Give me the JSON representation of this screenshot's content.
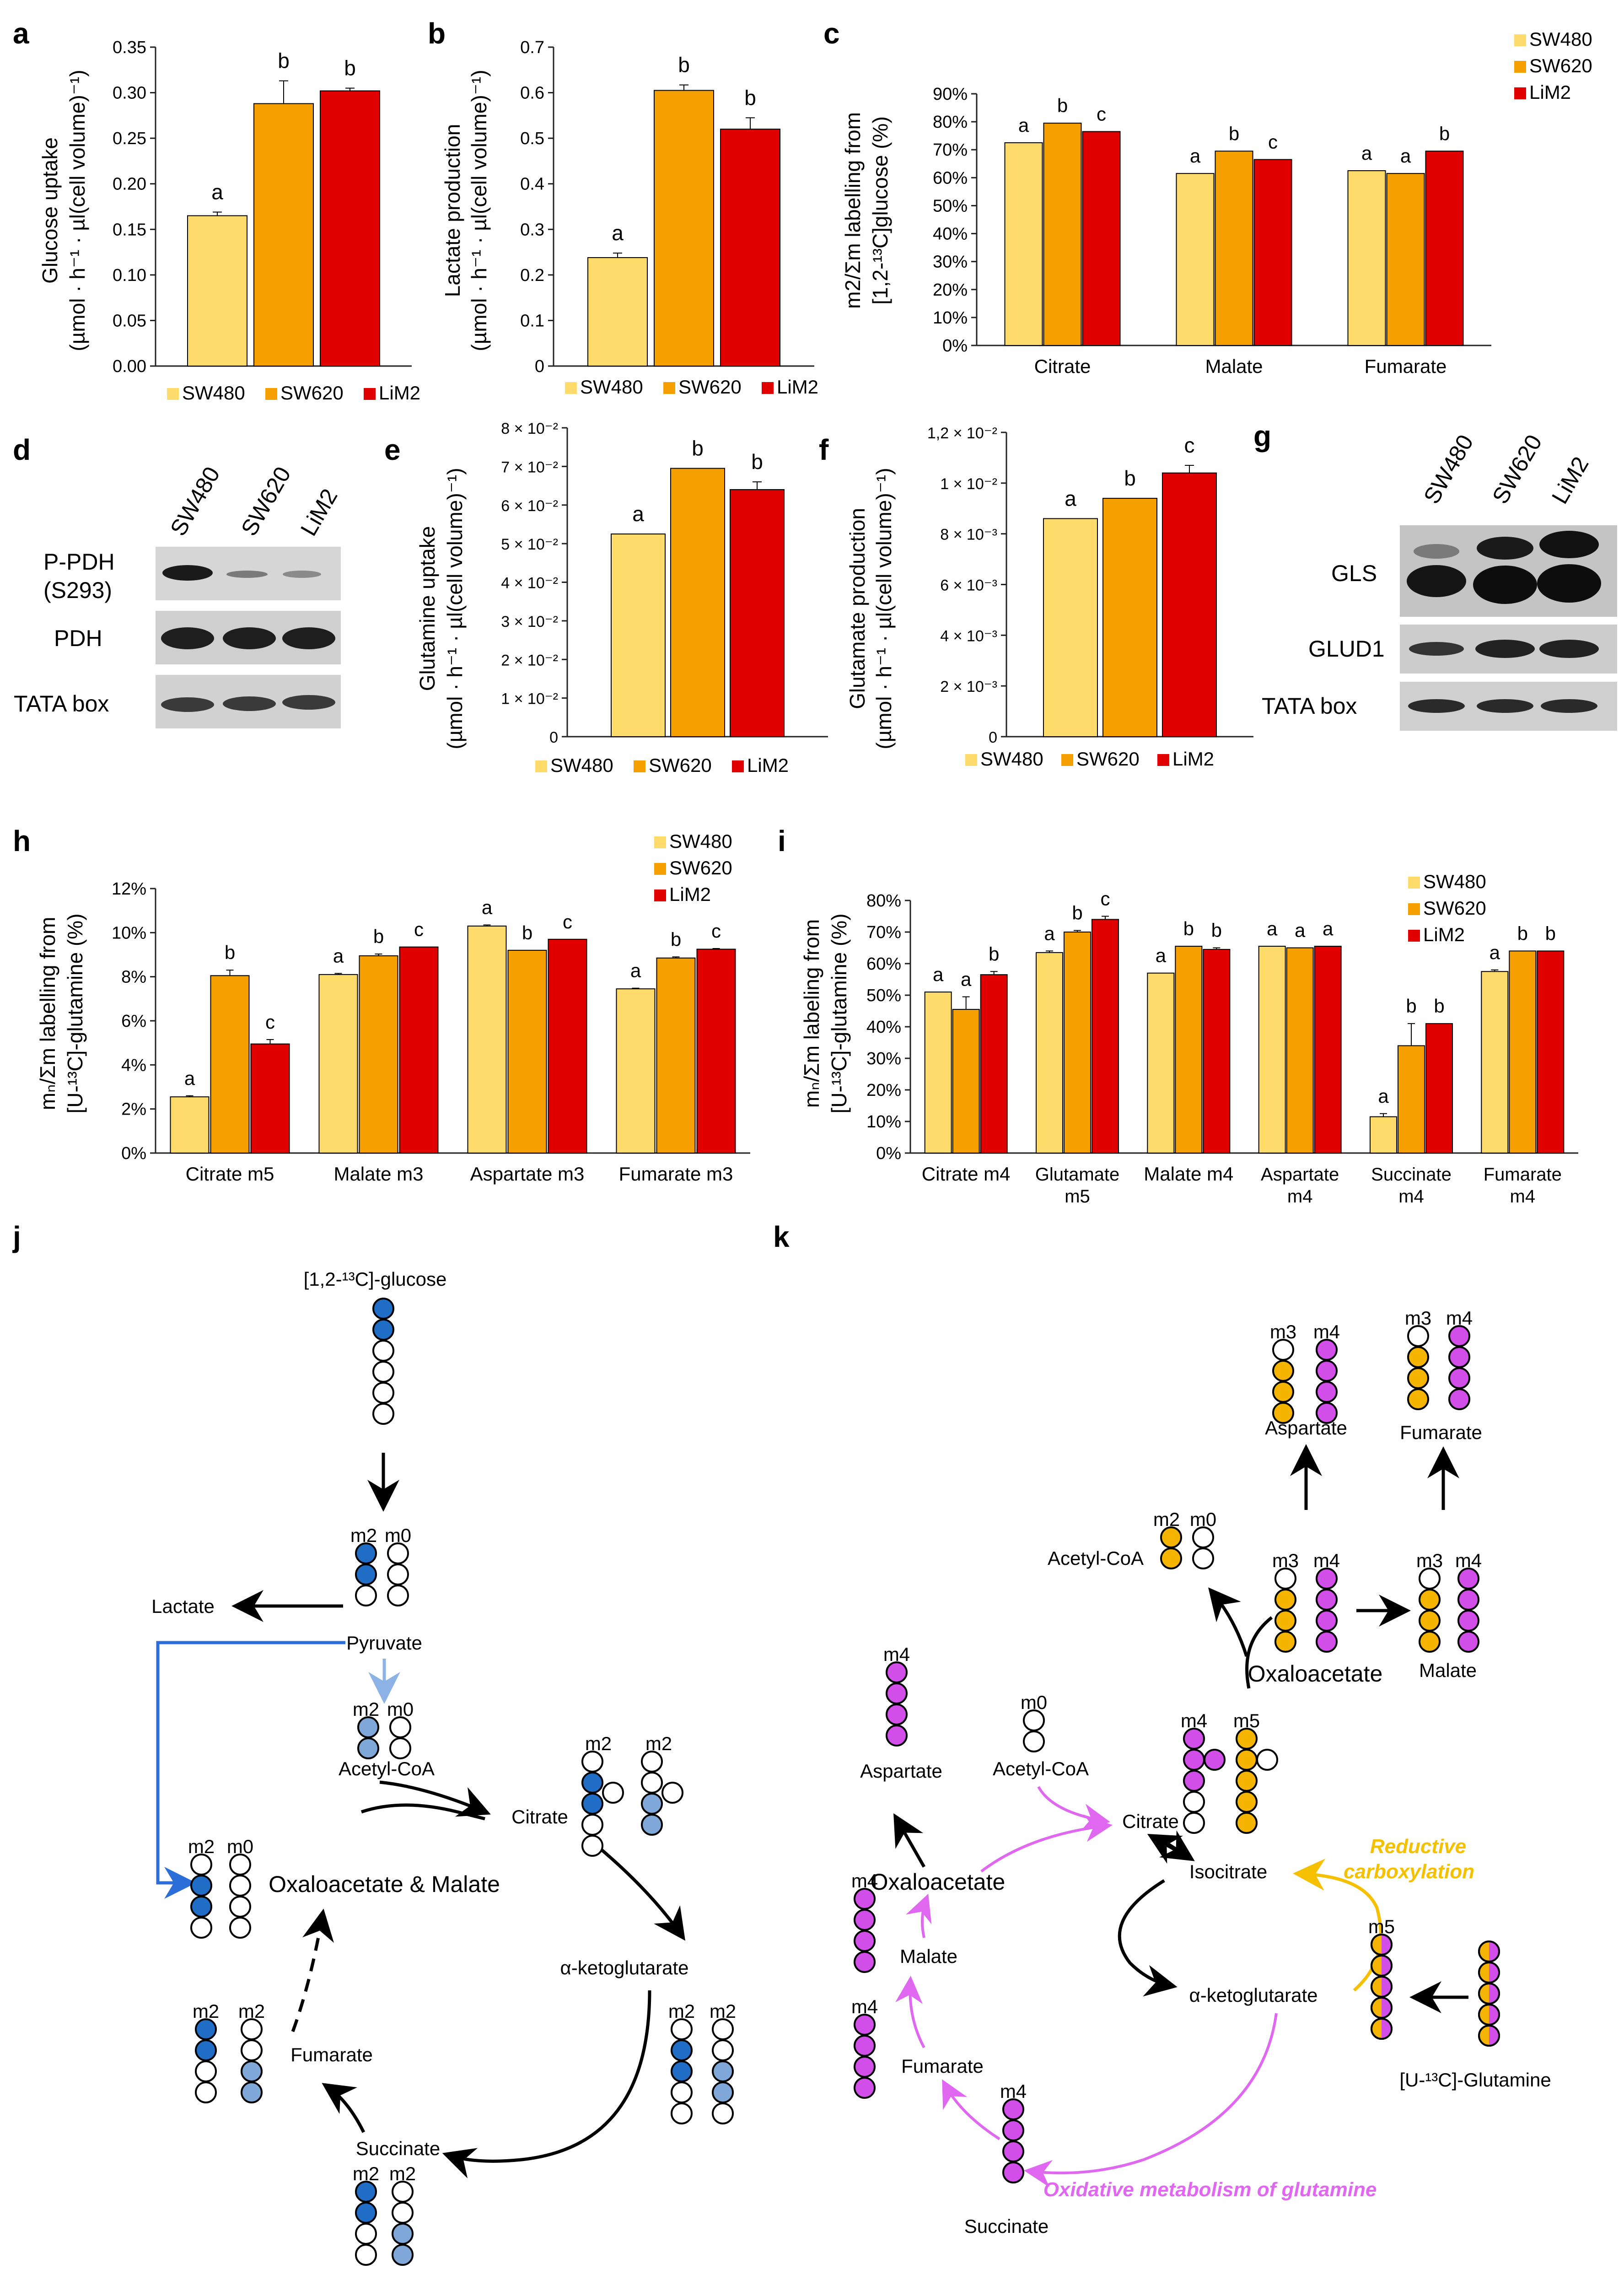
{
  "colors": {
    "SW480": "#FFDB6B",
    "SW620": "#F5A000",
    "LiM2": "#E00000",
    "blue_dark": "#1F6DC5",
    "blue_light": "#7FA8D8",
    "orange": "#F5B400",
    "magenta": "#D14FE8",
    "arrow_blue": "#2C6ED8",
    "arrow_lblue": "#8DB2E6",
    "pink_arrow": "#E068F0",
    "gold": "#F5C000"
  },
  "legend": [
    "SW480",
    "SW620",
    "LiM2"
  ],
  "panels": {
    "a": {
      "letter": "a",
      "ylabel1": "Glucose uptake",
      "ylabel2": "(µmol · h⁻¹ · µl(cell volume)⁻¹)",
      "yticks": [
        "0.00",
        "0.05",
        "0.10",
        "0.15",
        "0.20",
        "0.25",
        "0.30",
        "0.35"
      ]
    },
    "b": {
      "letter": "b",
      "ylabel1": "Lactate production",
      "ylabel2": "(µmol · h⁻¹ · µl(cell volume)⁻¹)",
      "yticks": [
        "0",
        "0.1",
        "0.2",
        "0.3",
        "0.4",
        "0.5",
        "0.6",
        "0.7"
      ]
    },
    "c": {
      "letter": "c",
      "ylabel1": "m2/Σm labelling from",
      "ylabel2": "[1,2-¹³C]glucose (%)",
      "yticks": [
        "0%",
        "10%",
        "20%",
        "30%",
        "40%",
        "50%",
        "60%",
        "70%",
        "80%",
        "90%"
      ]
    },
    "d": {
      "letter": "d",
      "lanes": [
        "SW480",
        "SW620",
        "LiM2"
      ],
      "rows": [
        "P-PDH",
        "(S293)",
        "PDH",
        "TATA box"
      ]
    },
    "e": {
      "letter": "e",
      "ylabel1": "Glutamine uptake",
      "ylabel2": "(µmol · h⁻¹ · µl(cell volume)⁻¹)",
      "yticks": [
        "0",
        "1 × 10⁻²",
        "2 × 10⁻²",
        "3 × 10⁻²",
        "4 × 10⁻²",
        "5 × 10⁻²",
        "6 × 10⁻²",
        "7 × 10⁻²",
        "8 × 10⁻²"
      ]
    },
    "f": {
      "letter": "f",
      "ylabel1": "Glutamate production",
      "ylabel2": "(µmol · h⁻¹ · µl(cell volume)⁻¹)",
      "yticks": [
        "0",
        "2 × 10⁻³",
        "4 × 10⁻³",
        "6 × 10⁻³",
        "8 × 10⁻³",
        "1 × 10⁻²",
        "1,2 × 10⁻²"
      ]
    },
    "g": {
      "letter": "g",
      "lanes": [
        "SW480",
        "SW620",
        "LiM2"
      ],
      "rows": [
        "GLS",
        "GLUD1",
        "TATA box"
      ]
    },
    "h": {
      "letter": "h",
      "ylabel1": "mₙ/Σm labelling from",
      "ylabel2": "[U-¹³C]-glutamine (%)",
      "yticks": [
        "0%",
        "2%",
        "4%",
        "6%",
        "8%",
        "10%",
        "12%"
      ]
    },
    "i": {
      "letter": "i",
      "ylabel1": "mₙ/Σm labeling from",
      "ylabel2": "[U-¹³C]-glutamine  (%)",
      "yticks": [
        "0%",
        "10%",
        "20%",
        "30%",
        "40%",
        "50%",
        "60%",
        "70%",
        "80%"
      ]
    }
  },
  "chart_data": [
    {
      "panel": "a",
      "type": "bar",
      "categories": [
        "SW480",
        "SW620",
        "LiM2"
      ],
      "values": [
        0.165,
        0.288,
        0.302
      ],
      "errors": [
        0.004,
        0.025,
        0.003
      ],
      "letters": [
        "a",
        "b",
        "b"
      ],
      "ylim": [
        0,
        0.35
      ],
      "ylabel": "Glucose uptake (µmol · h⁻¹ · µl(cell volume)⁻¹)"
    },
    {
      "panel": "b",
      "type": "bar",
      "categories": [
        "SW480",
        "SW620",
        "LiM2"
      ],
      "values": [
        0.238,
        0.605,
        0.52
      ],
      "errors": [
        0.01,
        0.012,
        0.025
      ],
      "letters": [
        "a",
        "b",
        "b"
      ],
      "ylim": [
        0,
        0.7
      ],
      "ylabel": "Lactate production (µmol · h⁻¹ · µl(cell volume)⁻¹)"
    },
    {
      "panel": "c",
      "type": "bar",
      "categories": [
        "Citrate",
        "Malate",
        "Fumarate"
      ],
      "series": [
        {
          "name": "SW480",
          "values": [
            72.5,
            61.5,
            62.5
          ]
        },
        {
          "name": "SW620",
          "values": [
            79.5,
            69.5,
            61.5
          ]
        },
        {
          "name": "LiM2",
          "values": [
            76.5,
            66.5,
            69.5
          ]
        }
      ],
      "letters": [
        [
          "a",
          "b",
          "c"
        ],
        [
          "a",
          "b",
          "c"
        ],
        [
          "a",
          "a",
          "b"
        ]
      ],
      "ylim": [
        0,
        90
      ],
      "ylabel": "m2/Σm labelling from [1,2-¹³C]glucose (%)"
    },
    {
      "panel": "e",
      "type": "bar",
      "categories": [
        "SW480",
        "SW620",
        "LiM2"
      ],
      "values": [
        0.0525,
        0.0695,
        0.064
      ],
      "errors": [
        0,
        0,
        0.002
      ],
      "letters": [
        "a",
        "b",
        "b"
      ],
      "ylim": [
        0,
        0.08
      ],
      "ylabel": "Glutamine uptake (µmol · h⁻¹ · µl(cell volume)⁻¹)"
    },
    {
      "panel": "f",
      "type": "bar",
      "categories": [
        "SW480",
        "SW620",
        "LiM2"
      ],
      "values": [
        0.0086,
        0.0094,
        0.0104
      ],
      "errors": [
        0,
        0,
        0.0003
      ],
      "letters": [
        "a",
        "b",
        "c"
      ],
      "ylim": [
        0,
        0.012
      ],
      "ylabel": "Glutamate production (µmol · h⁻¹ · µl(cell volume)⁻¹)"
    },
    {
      "panel": "h",
      "type": "bar",
      "categories": [
        "Citrate m5",
        "Malate m3",
        "Aspartate m3",
        "Fumarate m3"
      ],
      "series": [
        {
          "name": "SW480",
          "values": [
            2.55,
            8.1,
            10.3,
            7.45
          ]
        },
        {
          "name": "SW620",
          "values": [
            8.05,
            8.95,
            9.2,
            8.85
          ]
        },
        {
          "name": "LiM2",
          "values": [
            4.95,
            9.35,
            9.7,
            9.25
          ]
        }
      ],
      "errors": [
        [
          0.05,
          0.25,
          0.2
        ],
        [
          0.05,
          0.08,
          0
        ],
        [
          0.05,
          0,
          0
        ],
        [
          0.03,
          0.05,
          0.03
        ]
      ],
      "letters": [
        [
          "a",
          "b",
          "c"
        ],
        [
          "a",
          "b",
          "c"
        ],
        [
          "a",
          "b",
          "c"
        ],
        [
          "a",
          "b",
          "c"
        ]
      ],
      "ylim": [
        0,
        12
      ],
      "ylabel": "mₙ/Σm labelling from [U-¹³C]-glutamine (%)"
    },
    {
      "panel": "i",
      "type": "bar",
      "categories": [
        "Citrate  m4",
        "Glutamate m5",
        "Malate m4",
        "Aspartate m4",
        "Succinate m4",
        "Fumarate m4"
      ],
      "series": [
        {
          "name": "SW480",
          "values": [
            51,
            63.5,
            57,
            65.5,
            11.5,
            57.5
          ]
        },
        {
          "name": "SW620",
          "values": [
            45.5,
            70,
            65.5,
            65,
            34,
            64
          ]
        },
        {
          "name": "LiM2",
          "values": [
            56.5,
            74,
            64.5,
            65.5,
            41,
            64
          ]
        }
      ],
      "errors": [
        [
          0,
          4,
          1
        ],
        [
          0.5,
          0.5,
          1
        ],
        [
          0,
          0,
          0.5
        ],
        [
          0,
          0,
          0
        ],
        [
          1,
          7,
          0
        ],
        [
          0.5,
          0,
          0
        ]
      ],
      "letters": [
        [
          "a",
          "a",
          "b"
        ],
        [
          "a",
          "b",
          "c"
        ],
        [
          "a",
          "b",
          "b"
        ],
        [
          "a",
          "a",
          "a"
        ],
        [
          "a",
          "b",
          "b"
        ],
        [
          "a",
          "b",
          "b"
        ]
      ],
      "ylim": [
        0,
        80
      ],
      "ylabel": "mₙ/Σm labeling from [U-¹³C]-glutamine  (%)"
    }
  ],
  "diagram_j": {
    "letter": "j",
    "glucose": "[1,2-¹³C]-glucose",
    "lactate": "Lactate",
    "pyruvate": "Pyruvate",
    "acetylcoa": "Acetyl-CoA",
    "citrate": "Citrate",
    "oaa_malate": "Oxaloacetate & Malate",
    "akg": "α-ketoglutarate",
    "succinate": "Succinate",
    "fumarate": "Fumarate",
    "m2": "m2",
    "m0": "m0"
  },
  "diagram_k": {
    "letter": "k",
    "aspartate_top": "Aspartate",
    "fumarate_top": "Fumarate",
    "acetylcoa_top": "Acetyl-CoA",
    "oxaloacetate_top": "Oxaloacetate",
    "malate_top": "Malate",
    "aspartate": "Aspartate",
    "acetylcoa": "Acetyl-CoA",
    "citrate": "Citrate",
    "isocitrate": "Isocitrate",
    "oxaloacetate": "Oxaloacetate",
    "malate": "Malate",
    "fumarate": "Fumarate",
    "succinate": "Succinate",
    "akg": "α-ketoglutarate",
    "glutamine": "[U-¹³C]-Glutamine",
    "reductive1": "Reductive",
    "reductive2": "carboxylation",
    "oxidative": "Oxidative metabolism of glutamine",
    "m0": "m0",
    "m2": "m2",
    "m3": "m3",
    "m4": "m4",
    "m5": "m5"
  }
}
